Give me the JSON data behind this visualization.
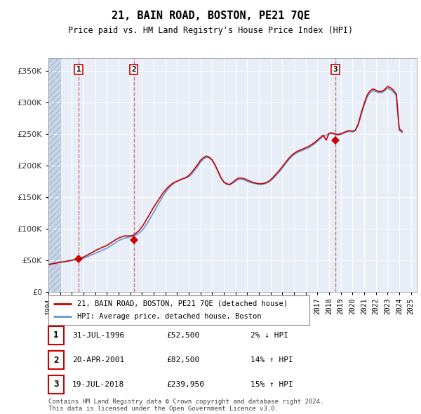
{
  "title": "21, BAIN ROAD, BOSTON, PE21 7QE",
  "subtitle": "Price paid vs. HM Land Registry's House Price Index (HPI)",
  "xlim_start": 1994.0,
  "xlim_end": 2025.5,
  "ylim_min": 0,
  "ylim_max": 370000,
  "yticks": [
    0,
    50000,
    100000,
    150000,
    200000,
    250000,
    300000,
    350000
  ],
  "ytick_labels": [
    "£0",
    "£50K",
    "£100K",
    "£150K",
    "£200K",
    "£250K",
    "£300K",
    "£350K"
  ],
  "background_color": "#e8eef8",
  "hatch_color": "#c8d4e8",
  "grid_color": "#ffffff",
  "purchases": [
    {
      "date_year": 1996.58,
      "price": 52500,
      "label": "1"
    },
    {
      "date_year": 2001.3,
      "price": 82500,
      "label": "2"
    },
    {
      "date_year": 2018.54,
      "price": 239950,
      "label": "3"
    }
  ],
  "purchase_details": [
    {
      "label": "1",
      "date": "31-JUL-1996",
      "price": "£52,500",
      "hpi_rel": "2% ↓ HPI"
    },
    {
      "label": "2",
      "date": "20-APR-2001",
      "price": "£82,500",
      "hpi_rel": "14% ↑ HPI"
    },
    {
      "label": "3",
      "date": "19-JUL-2018",
      "price": "£239,950",
      "hpi_rel": "15% ↑ HPI"
    }
  ],
  "line_color_red": "#cc0000",
  "line_color_blue": "#6699cc",
  "marker_color": "#cc0000",
  "dashed_line_color": "#cc6666",
  "label_red": "21, BAIN ROAD, BOSTON, PE21 7QE (detached house)",
  "label_blue": "HPI: Average price, detached house, Boston",
  "footer": "Contains HM Land Registry data © Crown copyright and database right 2024.\nThis data is licensed under the Open Government Licence v3.0.",
  "hpi_years": [
    1994.0,
    1994.25,
    1994.5,
    1994.75,
    1995.0,
    1995.25,
    1995.5,
    1995.75,
    1996.0,
    1996.25,
    1996.5,
    1996.75,
    1997.0,
    1997.25,
    1997.5,
    1997.75,
    1998.0,
    1998.25,
    1998.5,
    1998.75,
    1999.0,
    1999.25,
    1999.5,
    1999.75,
    2000.0,
    2000.25,
    2000.5,
    2000.75,
    2001.0,
    2001.25,
    2001.5,
    2001.75,
    2002.0,
    2002.25,
    2002.5,
    2002.75,
    2003.0,
    2003.25,
    2003.5,
    2003.75,
    2004.0,
    2004.25,
    2004.5,
    2004.75,
    2005.0,
    2005.25,
    2005.5,
    2005.75,
    2006.0,
    2006.25,
    2006.5,
    2006.75,
    2007.0,
    2007.25,
    2007.5,
    2007.75,
    2008.0,
    2008.25,
    2008.5,
    2008.75,
    2009.0,
    2009.25,
    2009.5,
    2009.75,
    2010.0,
    2010.25,
    2010.5,
    2010.75,
    2011.0,
    2011.25,
    2011.5,
    2011.75,
    2012.0,
    2012.25,
    2012.5,
    2012.75,
    2013.0,
    2013.25,
    2013.5,
    2013.75,
    2014.0,
    2014.25,
    2014.5,
    2014.75,
    2015.0,
    2015.25,
    2015.5,
    2015.75,
    2016.0,
    2016.25,
    2016.5,
    2016.75,
    2017.0,
    2017.25,
    2017.5,
    2017.75,
    2018.0,
    2018.25,
    2018.5,
    2018.75,
    2019.0,
    2019.25,
    2019.5,
    2019.75,
    2020.0,
    2020.25,
    2020.5,
    2020.75,
    2021.0,
    2021.25,
    2021.5,
    2021.75,
    2022.0,
    2022.25,
    2022.5,
    2022.75,
    2023.0,
    2023.25,
    2023.5,
    2023.75,
    2024.0,
    2024.25
  ],
  "hpi_values": [
    44000,
    44500,
    45000,
    46000,
    47000,
    47500,
    48500,
    49500,
    50000,
    50500,
    51200,
    52000,
    53000,
    55000,
    57000,
    59000,
    61000,
    63000,
    65000,
    67000,
    69000,
    72000,
    75000,
    78000,
    81000,
    83000,
    85000,
    86000,
    87000,
    88000,
    90000,
    93000,
    97000,
    103000,
    110000,
    118000,
    126000,
    134000,
    142000,
    150000,
    157000,
    163000,
    168000,
    172000,
    175000,
    177000,
    179000,
    180000,
    182000,
    186000,
    192000,
    198000,
    205000,
    210000,
    213000,
    212000,
    208000,
    200000,
    190000,
    180000,
    173000,
    170000,
    169000,
    172000,
    175000,
    178000,
    178000,
    177000,
    175000,
    173000,
    172000,
    171000,
    170000,
    170000,
    171000,
    173000,
    176000,
    180000,
    185000,
    190000,
    196000,
    202000,
    208000,
    213000,
    217000,
    220000,
    222000,
    224000,
    226000,
    228000,
    231000,
    234000,
    238000,
    242000,
    246000,
    248000,
    250000,
    250500,
    249000,
    248000,
    249000,
    251000,
    253000,
    254000,
    253000,
    255000,
    264000,
    280000,
    295000,
    308000,
    315000,
    318000,
    317000,
    315000,
    315000,
    318000,
    322000,
    320000,
    316000,
    310000,
    255000,
    252000
  ],
  "red_years": [
    1994.0,
    1994.25,
    1994.5,
    1994.75,
    1995.0,
    1995.25,
    1995.5,
    1995.75,
    1996.0,
    1996.25,
    1996.5,
    1996.75,
    1997.0,
    1997.25,
    1997.5,
    1997.75,
    1998.0,
    1998.25,
    1998.5,
    1998.75,
    1999.0,
    1999.25,
    1999.5,
    1999.75,
    2000.0,
    2000.25,
    2000.5,
    2000.75,
    2001.0,
    2001.25,
    2001.5,
    2001.75,
    2002.0,
    2002.25,
    2002.5,
    2002.75,
    2003.0,
    2003.25,
    2003.5,
    2003.75,
    2004.0,
    2004.25,
    2004.5,
    2004.75,
    2005.0,
    2005.25,
    2005.5,
    2005.75,
    2006.0,
    2006.25,
    2006.5,
    2006.75,
    2007.0,
    2007.25,
    2007.5,
    2007.75,
    2008.0,
    2008.25,
    2008.5,
    2008.75,
    2009.0,
    2009.25,
    2009.5,
    2009.75,
    2010.0,
    2010.25,
    2010.5,
    2010.75,
    2011.0,
    2011.25,
    2011.5,
    2011.75,
    2012.0,
    2012.25,
    2012.5,
    2012.75,
    2013.0,
    2013.25,
    2013.5,
    2013.75,
    2014.0,
    2014.25,
    2014.5,
    2014.75,
    2015.0,
    2015.25,
    2015.5,
    2015.75,
    2016.0,
    2016.25,
    2016.5,
    2016.75,
    2017.0,
    2017.25,
    2017.5,
    2017.75,
    2018.0,
    2018.25,
    2018.5,
    2018.75,
    2019.0,
    2019.25,
    2019.5,
    2019.75,
    2020.0,
    2020.25,
    2020.5,
    2020.75,
    2021.0,
    2021.25,
    2021.5,
    2021.75,
    2022.0,
    2022.25,
    2022.5,
    2022.75,
    2023.0,
    2023.25,
    2023.5,
    2023.75,
    2024.0,
    2024.25
  ],
  "red_values": [
    43000,
    44000,
    45000,
    46000,
    47000,
    47500,
    48000,
    49000,
    50000,
    51000,
    52000,
    53500,
    55000,
    57500,
    60000,
    62500,
    65000,
    67500,
    69500,
    71500,
    73500,
    76500,
    79500,
    82500,
    85000,
    87000,
    88500,
    88500,
    88500,
    89500,
    93000,
    97000,
    103000,
    110000,
    118000,
    126000,
    134000,
    141000,
    148000,
    155000,
    161000,
    166000,
    170000,
    173000,
    175000,
    177000,
    179000,
    181000,
    184000,
    189000,
    195000,
    201000,
    208000,
    212000,
    215000,
    213000,
    209000,
    201000,
    191000,
    181000,
    174000,
    171000,
    170000,
    173000,
    177000,
    180000,
    180000,
    179000,
    177000,
    175000,
    173000,
    172000,
    171000,
    171000,
    172000,
    174000,
    177000,
    182000,
    187000,
    192000,
    198000,
    204000,
    210000,
    215000,
    219000,
    222000,
    224000,
    226000,
    228000,
    230000,
    233000,
    236000,
    240000,
    244000,
    248000,
    239950,
    251000,
    251500,
    250000,
    249000,
    250000,
    252000,
    254000,
    255000,
    254000,
    256000,
    266000,
    283000,
    298000,
    311000,
    318000,
    321000,
    319000,
    317000,
    317000,
    320000,
    325000,
    323000,
    319000,
    313000,
    258000,
    254000
  ]
}
